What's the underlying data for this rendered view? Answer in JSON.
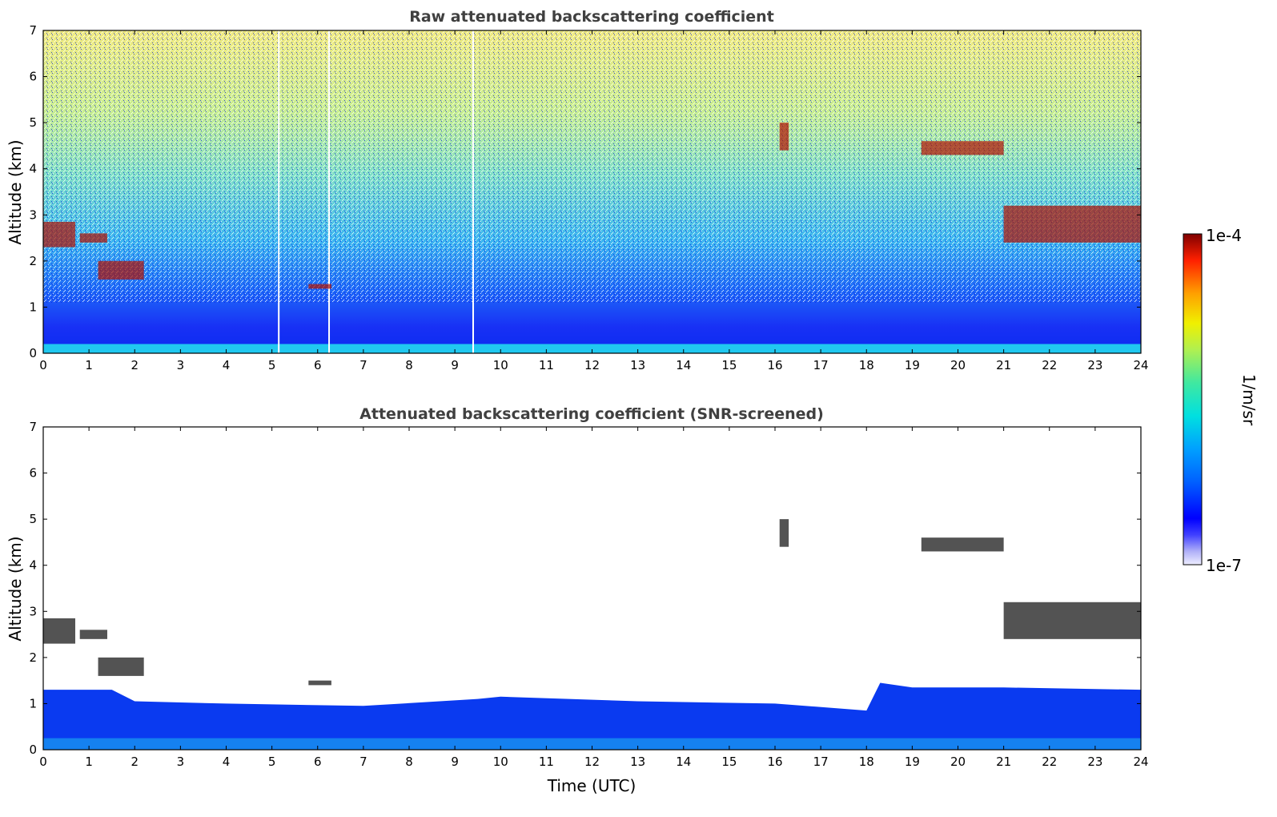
{
  "chart_data": [
    {
      "type": "heatmap",
      "title": "Raw attenuated backscattering coefficient",
      "xlabel": "",
      "ylabel": "Altitude (km)",
      "xlim": [
        0,
        24
      ],
      "ylim": [
        0,
        7
      ],
      "xticks": [
        "0",
        "1",
        "2",
        "3",
        "4",
        "5",
        "6",
        "7",
        "8",
        "9",
        "10",
        "11",
        "12",
        "13",
        "14",
        "15",
        "16",
        "17",
        "18",
        "19",
        "20",
        "21",
        "22",
        "23",
        "24"
      ],
      "yticks": [
        "0",
        "1",
        "2",
        "3",
        "4",
        "5",
        "6",
        "7"
      ],
      "screened": false,
      "data_gaps_utc": [
        5.15,
        6.25,
        9.4
      ],
      "cloud_layers": [
        {
          "x": [
            0.0,
            0.7
          ],
          "alt": [
            2.3,
            2.85
          ]
        },
        {
          "x": [
            0.8,
            1.4
          ],
          "alt": [
            2.4,
            2.6
          ]
        },
        {
          "x": [
            1.2,
            2.2
          ],
          "alt": [
            1.6,
            2.0
          ]
        },
        {
          "x": [
            5.8,
            6.3
          ],
          "alt": [
            1.4,
            1.5
          ]
        },
        {
          "x": [
            16.1,
            16.3
          ],
          "alt": [
            4.4,
            5.0
          ]
        },
        {
          "x": [
            19.2,
            21.0
          ],
          "alt": [
            4.3,
            4.6
          ]
        },
        {
          "x": [
            21.0,
            24.0
          ],
          "alt": [
            2.4,
            3.2
          ]
        }
      ],
      "colorbar": {
        "scale": "log",
        "label": "1/m/sr",
        "min": "1e-7",
        "max": "1e-4",
        "colormap": "jet"
      }
    },
    {
      "type": "heatmap",
      "title": "Attenuated backscattering coefficient (SNR-screened)",
      "xlabel": "Time (UTC)",
      "ylabel": "Altitude (km)",
      "xlim": [
        0,
        24
      ],
      "ylim": [
        0,
        7
      ],
      "xticks": [
        "0",
        "1",
        "2",
        "3",
        "4",
        "5",
        "6",
        "7",
        "8",
        "9",
        "10",
        "11",
        "12",
        "13",
        "14",
        "15",
        "16",
        "17",
        "18",
        "19",
        "20",
        "21",
        "22",
        "23",
        "24"
      ],
      "yticks": [
        "0",
        "1",
        "2",
        "3",
        "4",
        "5",
        "6",
        "7"
      ],
      "screened": true,
      "boundary_layer_top_km": [
        [
          0,
          1.3
        ],
        [
          1.5,
          1.3
        ],
        [
          2.0,
          1.05
        ],
        [
          4,
          1.0
        ],
        [
          7,
          0.95
        ],
        [
          9.5,
          1.1
        ],
        [
          10,
          1.15
        ],
        [
          13,
          1.05
        ],
        [
          16,
          1.0
        ],
        [
          18,
          0.85
        ],
        [
          18.3,
          1.45
        ],
        [
          19,
          1.35
        ],
        [
          21,
          1.35
        ],
        [
          24,
          1.3
        ]
      ],
      "cloud_layers": [
        {
          "x": [
            0.0,
            0.7
          ],
          "alt": [
            2.3,
            2.85
          ]
        },
        {
          "x": [
            0.8,
            1.4
          ],
          "alt": [
            2.4,
            2.6
          ]
        },
        {
          "x": [
            1.2,
            2.2
          ],
          "alt": [
            1.6,
            2.0
          ]
        },
        {
          "x": [
            5.8,
            6.3
          ],
          "alt": [
            1.4,
            1.5
          ]
        },
        {
          "x": [
            16.1,
            16.3
          ],
          "alt": [
            4.4,
            5.0
          ]
        },
        {
          "x": [
            19.2,
            21.0
          ],
          "alt": [
            4.3,
            4.6
          ]
        },
        {
          "x": [
            21.0,
            24.0
          ],
          "alt": [
            2.4,
            3.2
          ]
        }
      ]
    }
  ],
  "figure": {
    "xlabel": "Time (UTC)",
    "colorbar": {
      "label": "1/m/sr",
      "top_label": "1e-4",
      "bottom_label": "1e-7"
    }
  }
}
